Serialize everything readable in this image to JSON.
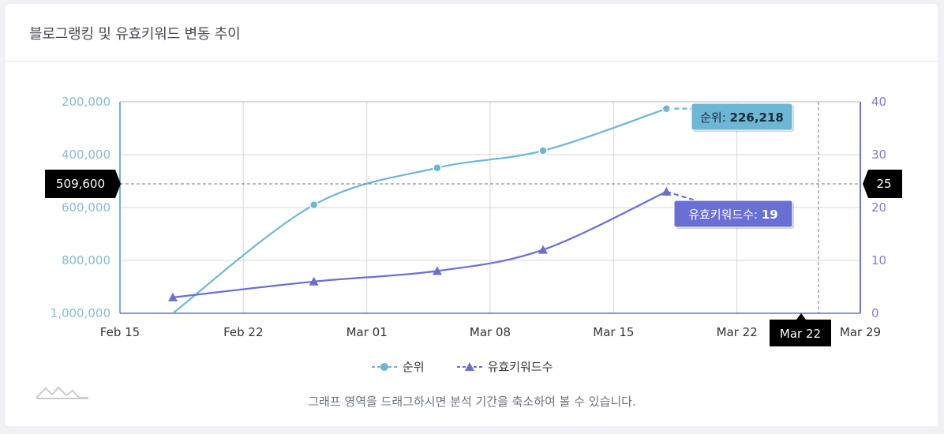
{
  "card": {
    "title": "블로그랭킹 및 유효키워드 변동 추이"
  },
  "chart_data": {
    "type": "line",
    "x": [
      "2025-02-18",
      "2025-02-26",
      "2025-03-05",
      "2025-03-11",
      "2025-03-18",
      "2025-03-22"
    ],
    "x_ticks": [
      "Feb 15",
      "Feb 22",
      "Mar 01",
      "Mar 08",
      "Mar 15",
      "Mar 22",
      "Mar 29"
    ],
    "series": [
      {
        "name": "순위",
        "axis": "left",
        "color": "#6cb6d6",
        "marker": "circle",
        "values": [
          1000000,
          590000,
          450000,
          385000,
          226218,
          226218
        ]
      },
      {
        "name": "유효키워드수",
        "axis": "right",
        "color": "#6a6fd4",
        "marker": "triangle",
        "values": [
          3,
          6,
          8,
          12,
          23,
          19
        ]
      }
    ],
    "y_left": {
      "ticks": [
        "200,000",
        "400,000",
        "600,000",
        "800,000",
        "1,000,000"
      ],
      "range": [
        200000,
        1000000
      ],
      "reversed": true
    },
    "y_right": {
      "ticks": [
        "40",
        "30",
        "20",
        "10",
        "0"
      ],
      "range": [
        0,
        40
      ]
    },
    "crosshair": {
      "left_value": "509,600",
      "right_value": "25",
      "x_value": "Mar 22"
    },
    "tooltips": [
      {
        "label": "순위: ",
        "value": "226,218",
        "color": "#6cb6d6"
      },
      {
        "label": "유효키워드수: ",
        "value": "19",
        "color": "#6a6fd4"
      }
    ],
    "legend_placement": "bottom",
    "grid": true
  },
  "hint": "그래프 영역을 드래그하시면 분석 기간을 축소하여 볼 수 있습니다."
}
